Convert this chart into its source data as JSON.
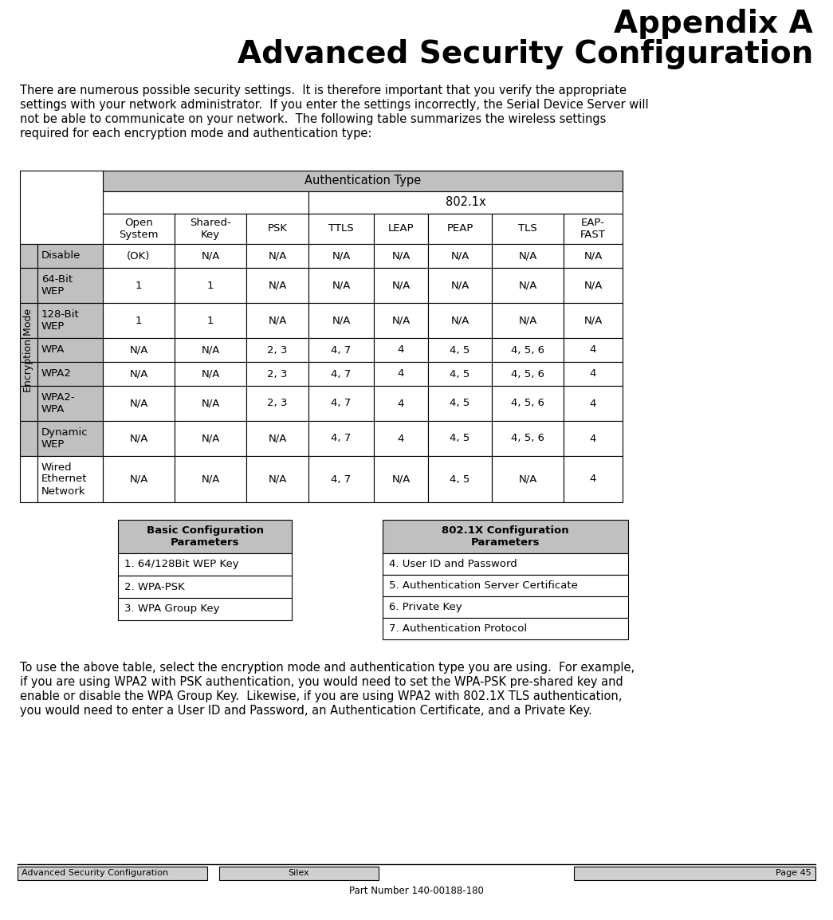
{
  "title_line1": "Appendix A",
  "title_line2": "Advanced Security Configuration",
  "intro_text1": "There are numerous possible security settings.  It is therefore important that you verify the appropriate",
  "intro_text2": "settings with your network administrator.  If you enter the settings incorrectly, the Serial Device Server will",
  "intro_text3": "not be able to communicate on your network.  The following table summarizes the wireless settings",
  "intro_text4": "required for each encryption mode and authentication type:",
  "table": {
    "col_headers": [
      "Open\nSystem",
      "Shared-\nKey",
      "PSK",
      "TTLS",
      "LEAP",
      "PEAP",
      "TLS",
      "EAP-\nFAST"
    ],
    "row_labels": [
      "Disable",
      "64-Bit\nWEP",
      "128-Bit\nWEP",
      "WPA",
      "WPA2",
      "WPA2-\nWPA",
      "Dynamic\nWEP",
      "Wired\nEthernet\nNetwork"
    ],
    "enc_mode_label": "Encryption Mode",
    "enc_mode_rows": [
      0,
      1,
      2,
      3,
      4,
      5,
      6
    ],
    "data": [
      [
        "(OK)",
        "N/A",
        "N/A",
        "N/A",
        "N/A",
        "N/A",
        "N/A",
        "N/A"
      ],
      [
        "1",
        "1",
        "N/A",
        "N/A",
        "N/A",
        "N/A",
        "N/A",
        "N/A"
      ],
      [
        "1",
        "1",
        "N/A",
        "N/A",
        "N/A",
        "N/A",
        "N/A",
        "N/A"
      ],
      [
        "N/A",
        "N/A",
        "2, 3",
        "4, 7",
        "4",
        "4, 5",
        "4, 5, 6",
        "4"
      ],
      [
        "N/A",
        "N/A",
        "2, 3",
        "4, 7",
        "4",
        "4, 5",
        "4, 5, 6",
        "4"
      ],
      [
        "N/A",
        "N/A",
        "2, 3",
        "4, 7",
        "4",
        "4, 5",
        "4, 5, 6",
        "4"
      ],
      [
        "N/A",
        "N/A",
        "N/A",
        "4, 7",
        "4",
        "4, 5",
        "4, 5, 6",
        "4"
      ],
      [
        "N/A",
        "N/A",
        "N/A",
        "4, 7",
        "N/A",
        "4, 5",
        "N/A",
        "4"
      ]
    ]
  },
  "basic_config": {
    "title": "Basic Configuration\nParameters",
    "items": [
      "1. 64/128Bit WEP Key",
      "2. WPA-PSK",
      "3. WPA Group Key"
    ]
  },
  "adv_config": {
    "title": "802.1X Configuration\nParameters",
    "items": [
      "4. User ID and Password",
      "5. Authentication Server Certificate",
      "6. Private Key",
      "7. Authentication Protocol"
    ]
  },
  "footer_text1": "To use the above table, select the encryption mode and authentication type you are using.  For example,",
  "footer_text2": "if you are using WPA2 with PSK authentication, you would need to set the WPA-PSK pre-shared key and",
  "footer_text3": "enable or disable the WPA Group Key.  Likewise, if you are using WPA2 with 802.1X TLS authentication,",
  "footer_text4": "you would need to enter a User ID and Password, an Authentication Certificate, and a Private Key.",
  "footer_bar": [
    "Advanced Security Configuration",
    "Silex",
    "Page 45"
  ],
  "part_number": "Part Number 140-00188-180",
  "bg_color": "#ffffff",
  "header_color": "#c8c8c8"
}
